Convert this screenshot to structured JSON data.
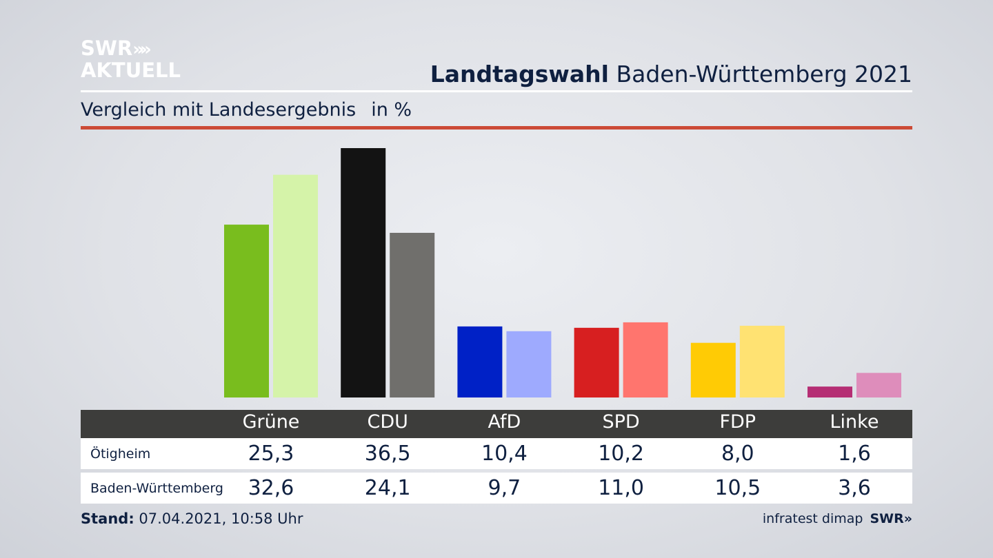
{
  "brand": {
    "logo_line1": "SWR",
    "logo_chevrons": "»",
    "logo_line2": "AKTUELL",
    "footer_logo": "SWR»"
  },
  "header": {
    "title_bold": "Landtagswahl",
    "title_rest": " Baden-Württemberg 2021",
    "subtitle": "Vergleich mit Landesergebnis",
    "unit": "in %"
  },
  "footer": {
    "stand_label": "Stand:",
    "stand_value": " 07.04.2021, 10:58 Uhr",
    "source": "infratest dimap"
  },
  "table": {
    "row1_label": "Ötigheim",
    "row2_label": "Baden-Württemberg",
    "row1_values": [
      "25,3",
      "36,5",
      "10,4",
      "10,2",
      "8,0",
      "1,6"
    ],
    "row2_values": [
      "32,6",
      "24,1",
      "9,7",
      "11,0",
      "10,5",
      "3,6"
    ]
  },
  "chart_data": {
    "type": "bar",
    "categories": [
      "Grüne",
      "CDU",
      "AfD",
      "SPD",
      "FDP",
      "Linke"
    ],
    "series": [
      {
        "name": "Ötigheim",
        "values": [
          25.3,
          36.5,
          10.4,
          10.2,
          8.0,
          1.6
        ],
        "colors": [
          "#79bd1e",
          "#131313",
          "#0021c6",
          "#d71f20",
          "#ffcb05",
          "#b52e74"
        ]
      },
      {
        "name": "Baden-Württemberg",
        "values": [
          32.6,
          24.1,
          9.7,
          11.0,
          10.5,
          3.6
        ],
        "colors": [
          "#d5f3a9",
          "#706f6c",
          "#9eaafe",
          "#ff756e",
          "#ffe272",
          "#de8dbb"
        ]
      }
    ],
    "ylim": [
      0,
      36.5
    ],
    "grid": false,
    "legend": "table-below"
  },
  "colors": {
    "accent_red": "#cc4a36",
    "table_header": "#3d3d3b",
    "text": "#0f2040"
  }
}
